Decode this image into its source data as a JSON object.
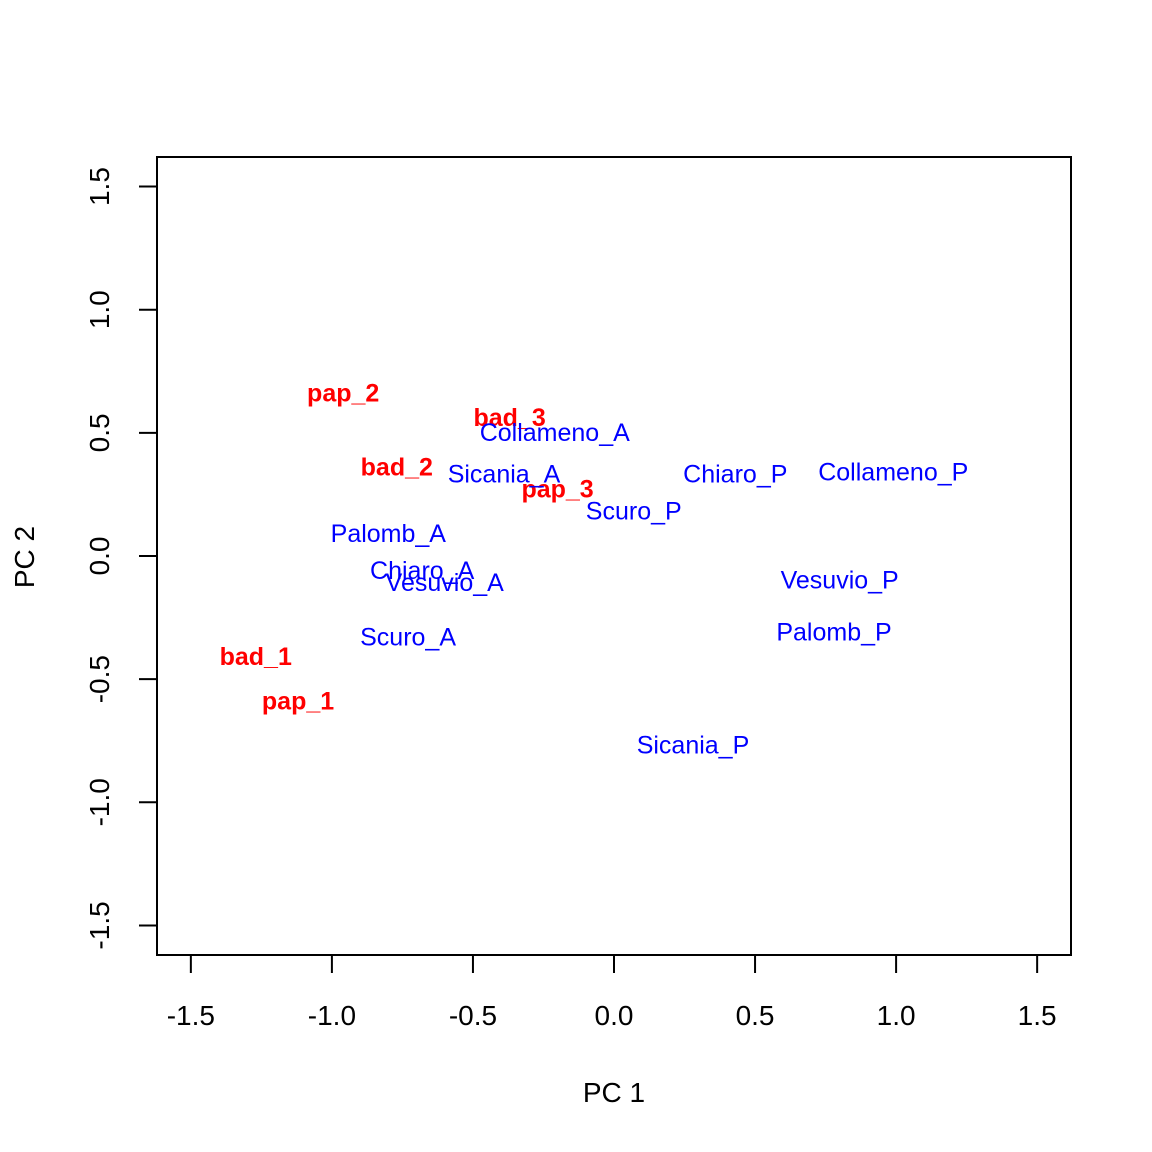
{
  "chart_data": {
    "type": "scatter",
    "title": "",
    "xlabel": "PC 1",
    "ylabel": "PC 2",
    "xlim": [
      -1.62,
      1.62
    ],
    "ylim": [
      -1.62,
      1.62
    ],
    "x_ticks": [
      -1.5,
      -1.0,
      -0.5,
      0.0,
      0.5,
      1.0,
      1.5
    ],
    "x_tick_labels": [
      "-1.5",
      "-1.0",
      "-0.5",
      "0.0",
      "0.5",
      "1.0",
      "1.5"
    ],
    "y_ticks": [
      -1.5,
      -1.0,
      -0.5,
      0.0,
      0.5,
      1.0,
      1.5
    ],
    "y_tick_labels": [
      "-1.5",
      "-1.0",
      "-0.5",
      "0.0",
      "0.5",
      "1.0",
      "1.5"
    ],
    "grid": false,
    "colors": {
      "group_1": "#ff0000",
      "group_2": "#0000ff"
    },
    "series": [
      {
        "color": "#ff0000",
        "bold": true,
        "points": [
          {
            "label": "pap_2",
            "x": -0.96,
            "y": 0.66
          },
          {
            "label": "bad_3",
            "x": -0.37,
            "y": 0.56
          },
          {
            "label": "bad_2",
            "x": -0.77,
            "y": 0.36
          },
          {
            "label": "pap_3",
            "x": -0.2,
            "y": 0.27
          },
          {
            "label": "bad_1",
            "x": -1.27,
            "y": -0.41
          },
          {
            "label": "pap_1",
            "x": -1.12,
            "y": -0.59
          }
        ]
      },
      {
        "color": "#0000ff",
        "bold": false,
        "points": [
          {
            "label": "Collameno_A",
            "x": -0.21,
            "y": 0.5
          },
          {
            "label": "Sicania_A",
            "x": -0.39,
            "y": 0.33
          },
          {
            "label": "Chiaro_P",
            "x": 0.43,
            "y": 0.33
          },
          {
            "label": "Collameno_P",
            "x": 0.99,
            "y": 0.34
          },
          {
            "label": "Scuro_P",
            "x": 0.07,
            "y": 0.18
          },
          {
            "label": "Palomb_A",
            "x": -0.8,
            "y": 0.09
          },
          {
            "label": "Chiaro_A",
            "x": -0.68,
            "y": -0.06
          },
          {
            "label": "Vesuvio_A",
            "x": -0.6,
            "y": -0.11
          },
          {
            "label": "Vesuvio_P",
            "x": 0.8,
            "y": -0.1
          },
          {
            "label": "Palomb_P",
            "x": 0.78,
            "y": -0.31
          },
          {
            "label": "Scuro_A",
            "x": -0.73,
            "y": -0.33
          },
          {
            "label": "Sicania_P",
            "x": 0.28,
            "y": -0.77
          }
        ]
      }
    ]
  }
}
